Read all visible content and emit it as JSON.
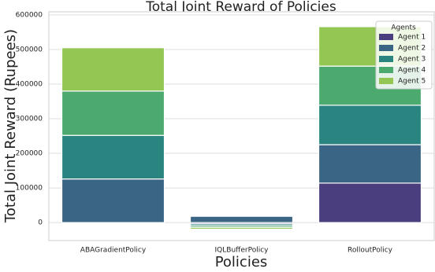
{
  "chart_data": {
    "type": "stacked_bar",
    "title": "Total Joint Reward of Policies",
    "x_label": "Policies",
    "y_label": "Total Joint Reward (Rupees)",
    "categories": [
      "ABAGradientPolicy",
      "IQLBufferPolicy",
      "RolloutPolicy"
    ],
    "series": [
      {
        "name": "Agent 1",
        "color": "#4b3e7e",
        "values": [
          0,
          -4000,
          114000
        ]
      },
      {
        "name": "Agent 2",
        "color": "#3a6585",
        "values": [
          126000,
          18000,
          111000
        ]
      },
      {
        "name": "Agent 3",
        "color": "#2a8580",
        "values": [
          126000,
          -5000,
          114000
        ]
      },
      {
        "name": "Agent 4",
        "color": "#4caa6e",
        "values": [
          128000,
          -5000,
          113000
        ]
      },
      {
        "name": "Agent 5",
        "color": "#93c653",
        "values": [
          125000,
          -5000,
          114000
        ]
      }
    ],
    "ylim": [
      -52000,
      609000
    ],
    "yticks": [
      0,
      100000,
      200000,
      300000,
      400000,
      500000,
      600000
    ],
    "grid": true,
    "legend": "upper right",
    "legend_title": "Agents"
  }
}
